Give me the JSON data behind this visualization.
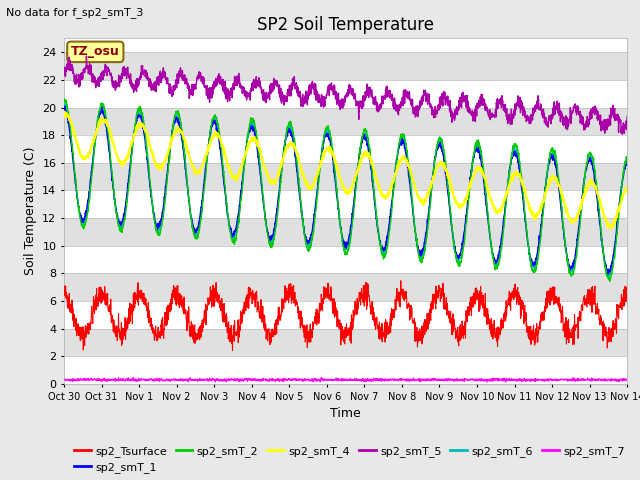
{
  "title": "SP2 Soil Temperature",
  "subtitle": "No data for f_sp2_smT_3",
  "xlabel": "Time",
  "ylabel": "Soil Temperature (C)",
  "tz_label": "TZ_osu",
  "ylim": [
    0,
    25
  ],
  "yticks": [
    0,
    2,
    4,
    6,
    8,
    10,
    12,
    14,
    16,
    18,
    20,
    22,
    24
  ],
  "xticklabels": [
    "Oct 30",
    "Oct 31",
    "Nov 1",
    "Nov 2",
    "Nov 3",
    "Nov 4",
    "Nov 5",
    "Nov 6",
    "Nov 7",
    "Nov 8",
    "Nov 9",
    "Nov 10",
    "Nov 11",
    "Nov 12",
    "Nov 13",
    "Nov 14"
  ],
  "n_days": 15,
  "colors": {
    "sp2_Tsurface": "#ff0000",
    "sp2_smT_1": "#0000ff",
    "sp2_smT_2": "#00cc00",
    "sp2_smT_4": "#ffff00",
    "sp2_smT_5": "#aa00aa",
    "sp2_smT_6": "#00bbbb",
    "sp2_smT_7": "#ff00ff"
  },
  "bg_color": "#e8e8e8",
  "band_light": "#e8e8e8",
  "band_dark": "#d0d0d0",
  "grid_color": "#bbbbbb"
}
